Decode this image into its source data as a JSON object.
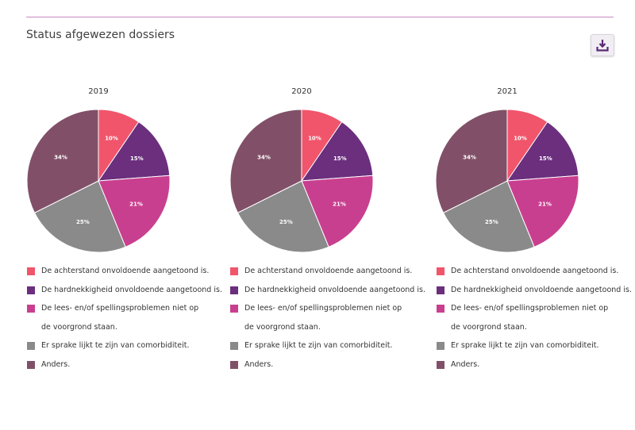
{
  "page": {
    "title": "Status afgewezen dossiers",
    "download_icon": "download-tray-icon"
  },
  "legend": [
    {
      "label": "De achterstand onvoldoende aangetoond is.",
      "color": "#f0556b"
    },
    {
      "label": "De hardnekkigheid onvoldoende aangetoond is.",
      "color": "#6b2f7e"
    },
    {
      "label": "De lees- en/of spellingsproblemen niet op\nde voorgrond staan.",
      "color": "#c93f8f"
    },
    {
      "label": "Er sprake lijkt te zijn van comorbiditeit.",
      "color": "#8a8a8a"
    },
    {
      "label": "Anders.",
      "color": "#815068"
    }
  ],
  "chart_data": [
    {
      "type": "pie",
      "title": "2019",
      "slices": [
        {
          "category": "De achterstand onvoldoende aangetoond is.",
          "value": 10,
          "label": "10%"
        },
        {
          "category": "De hardnekkigheid onvoldoende aangetoond is.",
          "value": 15,
          "label": "15%"
        },
        {
          "category": "De lees- en/of spellingsproblemen niet op de voorgrond staan.",
          "value": 21,
          "label": "21%"
        },
        {
          "category": "Er sprake lijkt te zijn van comorbiditeit.",
          "value": 25,
          "label": "25%"
        },
        {
          "category": "Anders.",
          "value": 34,
          "label": "34%"
        }
      ]
    },
    {
      "type": "pie",
      "title": "2020",
      "slices": [
        {
          "category": "De achterstand onvoldoende aangetoond is.",
          "value": 10,
          "label": "10%"
        },
        {
          "category": "De hardnekkigheid onvoldoende aangetoond is.",
          "value": 15,
          "label": "15%"
        },
        {
          "category": "De lees- en/of spellingsproblemen niet op de voorgrond staan.",
          "value": 21,
          "label": "21%"
        },
        {
          "category": "Er sprake lijkt te zijn van comorbiditeit.",
          "value": 25,
          "label": "25%"
        },
        {
          "category": "Anders.",
          "value": 34,
          "label": "34%"
        }
      ]
    },
    {
      "type": "pie",
      "title": "2021",
      "slices": [
        {
          "category": "De achterstand onvoldoende aangetoond is.",
          "value": 10,
          "label": "10%"
        },
        {
          "category": "De hardnekkigheid onvoldoende aangetoond is.",
          "value": 15,
          "label": "15%"
        },
        {
          "category": "De lees- en/of spellingsproblemen niet op de voorgrond staan.",
          "value": 21,
          "label": "21%"
        },
        {
          "category": "Er sprake lijkt te zijn van comorbiditeit.",
          "value": 25,
          "label": "25%"
        },
        {
          "category": "Anders.",
          "value": 34,
          "label": "34%"
        }
      ]
    }
  ]
}
